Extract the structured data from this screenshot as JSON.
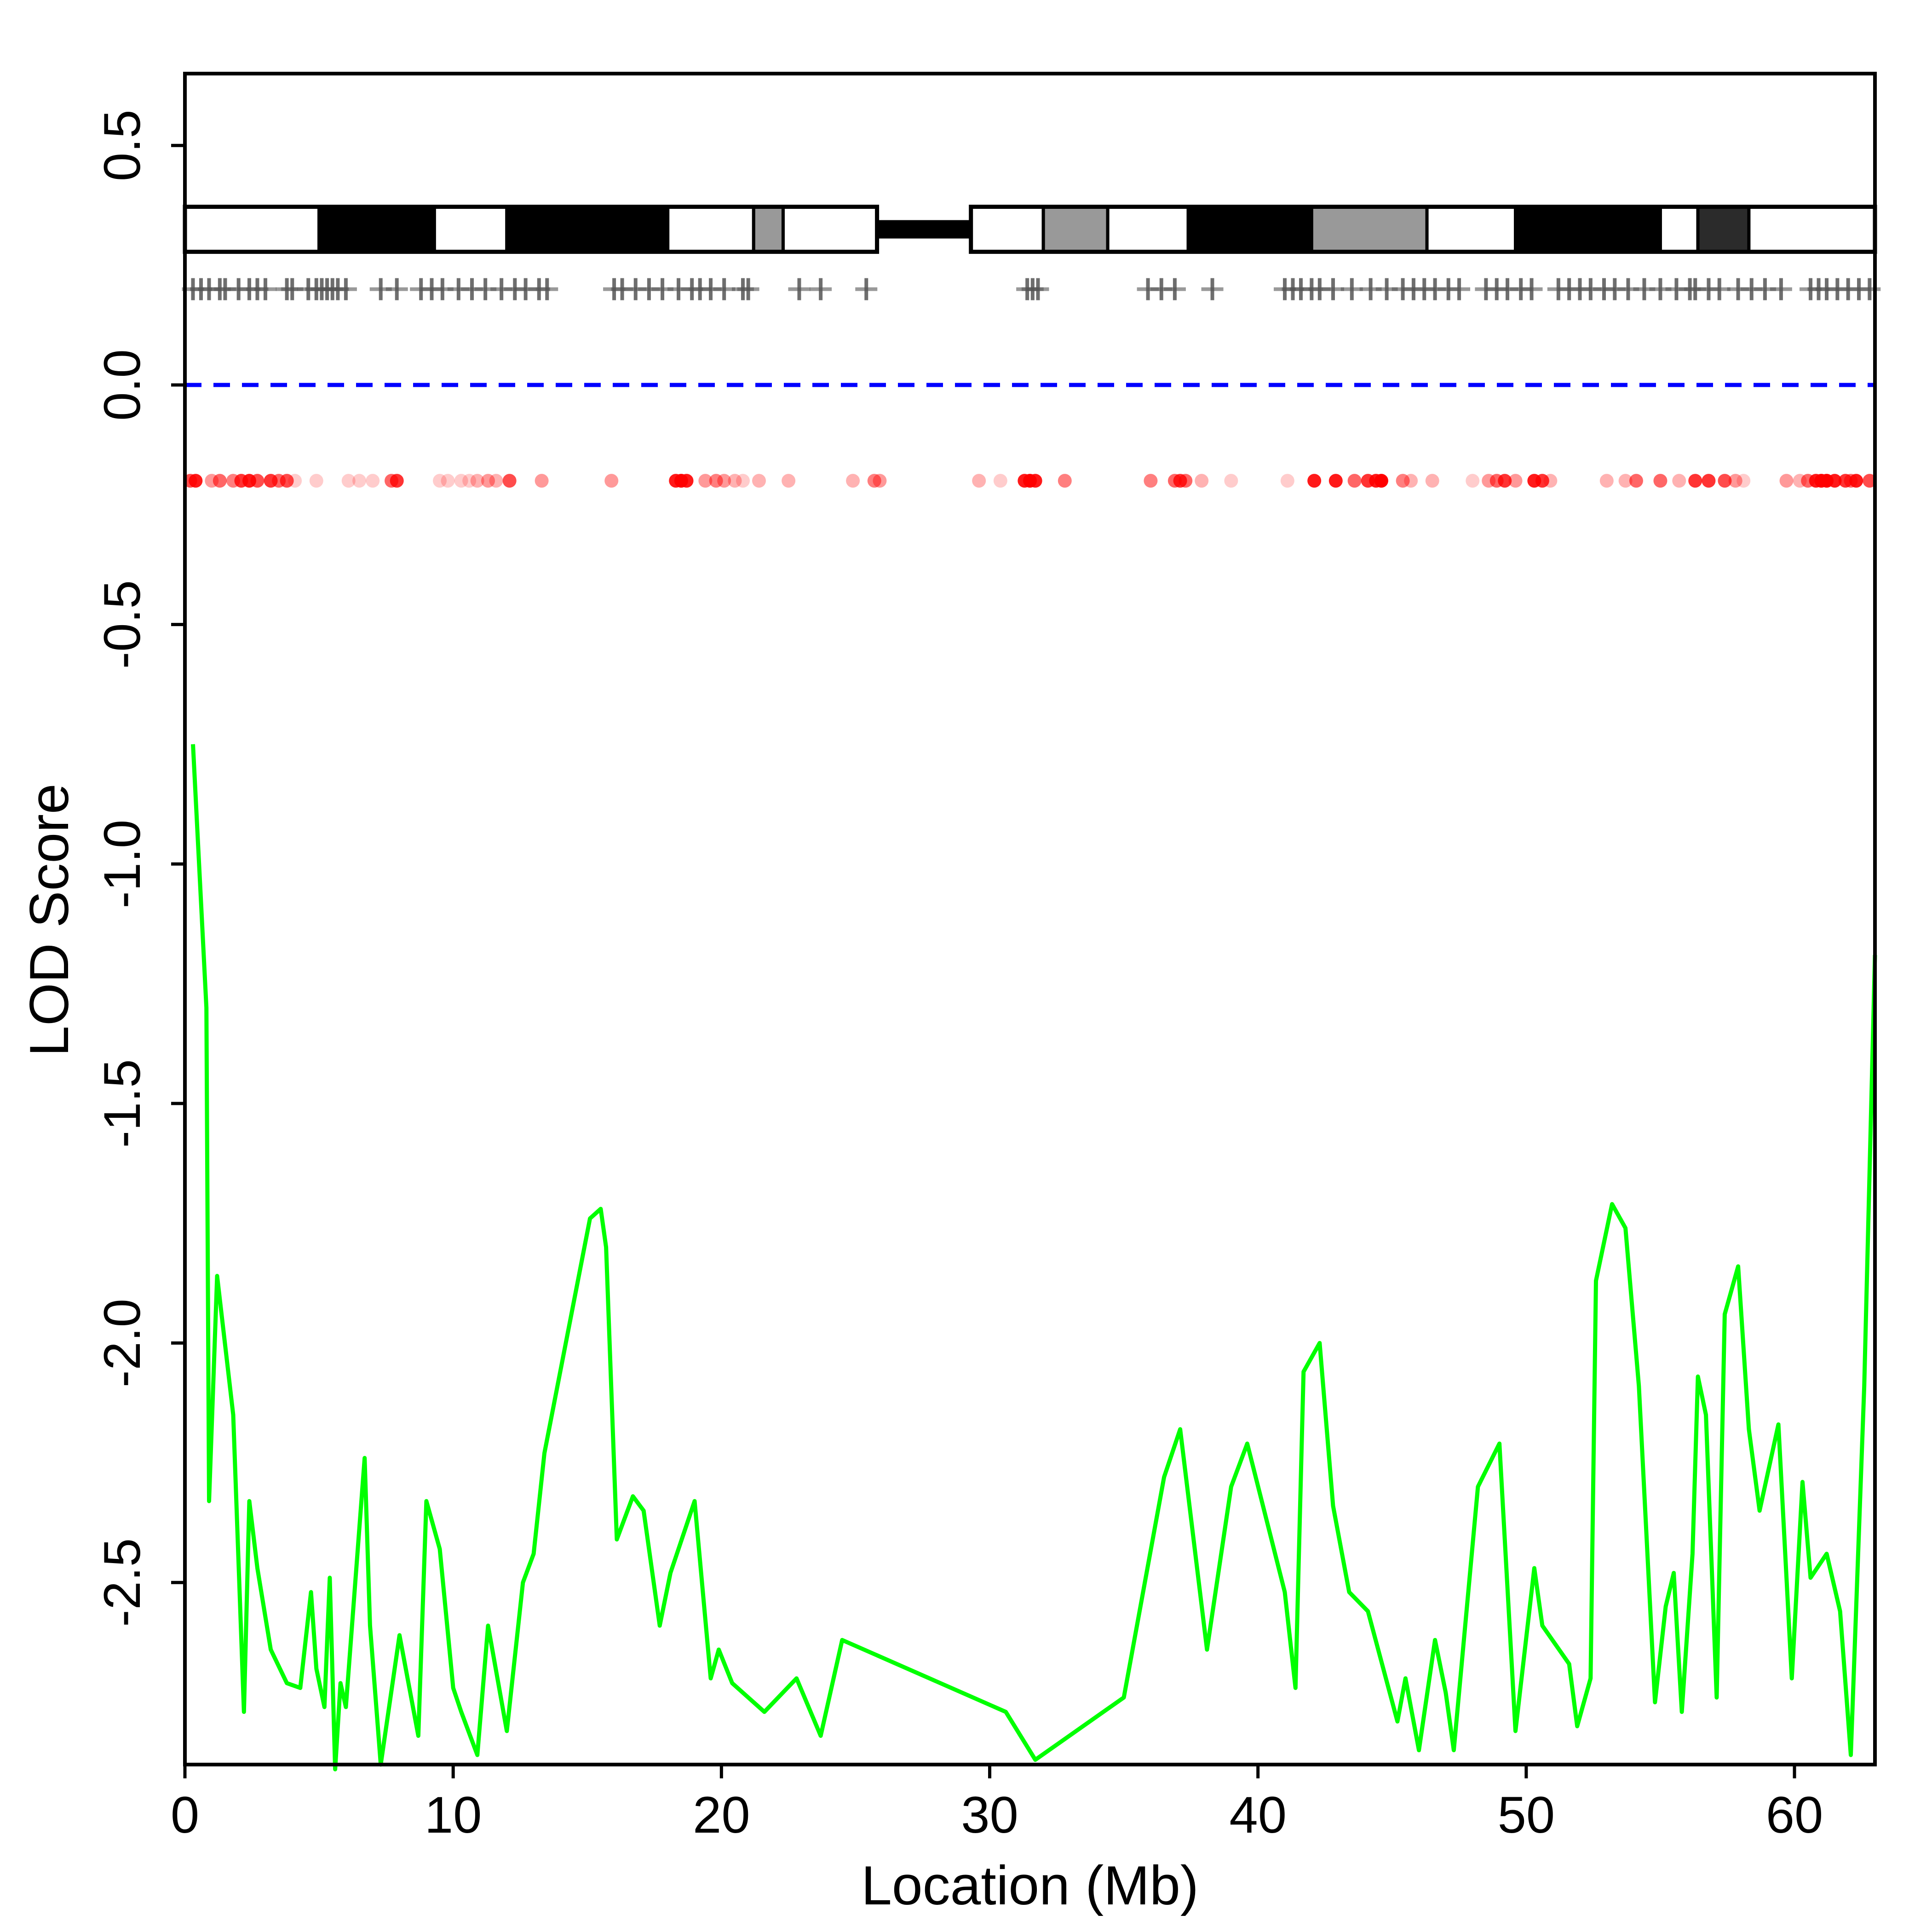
{
  "chart_data": {
    "type": "line",
    "xlabel": "Location (Mb)",
    "ylabel": "LOD Score",
    "xlim": [
      0,
      63
    ],
    "ylim": [
      -2.88,
      0.65
    ],
    "x_ticks": [
      0,
      10,
      20,
      30,
      40,
      50,
      60
    ],
    "x_tick_labels": [
      "0",
      "10",
      "20",
      "30",
      "40",
      "50",
      "60"
    ],
    "y_ticks": [
      -2.5,
      -2.0,
      -1.5,
      -1.0,
      -0.5,
      0.0,
      0.5
    ],
    "y_tick_labels": [
      "-2.5",
      "-2.0",
      "-1.5",
      "-1.0",
      "-0.5",
      "0.0",
      "0.5"
    ],
    "reference_line": {
      "y": 0.0,
      "style": "dashed",
      "color": "#0000ff"
    },
    "series": [
      {
        "color": "#00ff00",
        "x": [
          0.3,
          0.8,
          0.9,
          1.2,
          1.8,
          2.2,
          2.4,
          2.7,
          3.2,
          3.8,
          4.3,
          4.7,
          4.9,
          5.2,
          5.4,
          5.6,
          5.8,
          6.0,
          6.7,
          6.9,
          7.3,
          8.0,
          8.7,
          9.0,
          9.5,
          10.0,
          10.3,
          10.9,
          11.3,
          12.0,
          12.6,
          13.0,
          13.4,
          15.1,
          15.5,
          15.7,
          16.1,
          16.7,
          17.1,
          17.7,
          18.1,
          19.0,
          19.6,
          19.9,
          20.4,
          21.6,
          22.8,
          23.7,
          24.5,
          30.6,
          31.7,
          35.0,
          36.5,
          37.1,
          38.1,
          39.0,
          39.6,
          41.0,
          41.4,
          41.7,
          42.3,
          42.8,
          43.4,
          44.1,
          45.2,
          45.5,
          46.0,
          46.6,
          47.0,
          47.3,
          48.2,
          49.0,
          49.6,
          50.3,
          50.6,
          51.6,
          51.9,
          52.4,
          52.6,
          53.2,
          53.7,
          54.2,
          54.8,
          55.2,
          55.5,
          55.8,
          56.2,
          56.4,
          56.7,
          57.1,
          57.4,
          57.9,
          58.3,
          58.7,
          59.4,
          59.9,
          60.3,
          60.6,
          61.2,
          61.7,
          62.1,
          62.6,
          63.0
        ],
        "y": [
          -0.75,
          -1.3,
          -2.33,
          -1.86,
          -2.15,
          -2.77,
          -2.33,
          -2.47,
          -2.64,
          -2.71,
          -2.72,
          -2.52,
          -2.68,
          -2.76,
          -2.49,
          -2.89,
          -2.71,
          -2.76,
          -2.24,
          -2.59,
          -2.88,
          -2.61,
          -2.82,
          -2.33,
          -2.43,
          -2.72,
          -2.77,
          -2.86,
          -2.59,
          -2.81,
          -2.5,
          -2.44,
          -2.23,
          -1.74,
          -1.72,
          -1.8,
          -2.41,
          -2.32,
          -2.35,
          -2.59,
          -2.48,
          -2.33,
          -2.7,
          -2.64,
          -2.71,
          -2.77,
          -2.7,
          -2.82,
          -2.62,
          -2.77,
          -2.87,
          -2.74,
          -2.28,
          -2.18,
          -2.64,
          -2.3,
          -2.21,
          -2.52,
          -2.72,
          -2.06,
          -2.0,
          -2.34,
          -2.52,
          -2.56,
          -2.79,
          -2.7,
          -2.85,
          -2.62,
          -2.73,
          -2.85,
          -2.3,
          -2.21,
          -2.81,
          -2.47,
          -2.59,
          -2.67,
          -2.8,
          -2.7,
          -1.87,
          -1.71,
          -1.76,
          -2.09,
          -2.75,
          -2.55,
          -2.48,
          -2.77,
          -2.44,
          -2.07,
          -2.15,
          -2.74,
          -1.94,
          -1.84,
          -2.18,
          -2.35,
          -2.17,
          -2.7,
          -2.29,
          -2.49,
          -2.44,
          -2.56,
          -2.86,
          -2.09,
          -1.19
        ]
      }
    ],
    "ideogram": {
      "y_top": 0.372,
      "y_bottom": 0.278,
      "centromere": [
        25.8,
        29.3
      ],
      "bands": [
        {
          "start": 0,
          "end": 5.0,
          "fill": "#ffffff"
        },
        {
          "start": 5.0,
          "end": 9.3,
          "fill": "#000000"
        },
        {
          "start": 9.3,
          "end": 12.0,
          "fill": "#ffffff"
        },
        {
          "start": 12.0,
          "end": 18.0,
          "fill": "#000000"
        },
        {
          "start": 18.0,
          "end": 21.2,
          "fill": "#ffffff"
        },
        {
          "start": 21.2,
          "end": 22.3,
          "fill": "#999999"
        },
        {
          "start": 22.3,
          "end": 25.8,
          "fill": "#ffffff"
        },
        {
          "start": 29.3,
          "end": 32.0,
          "fill": "#ffffff"
        },
        {
          "start": 32.0,
          "end": 34.4,
          "fill": "#999999"
        },
        {
          "start": 34.4,
          "end": 37.4,
          "fill": "#ffffff"
        },
        {
          "start": 37.4,
          "end": 42.0,
          "fill": "#000000"
        },
        {
          "start": 42.0,
          "end": 46.3,
          "fill": "#999999"
        },
        {
          "start": 46.3,
          "end": 49.6,
          "fill": "#ffffff"
        },
        {
          "start": 49.6,
          "end": 55.0,
          "fill": "#000000"
        },
        {
          "start": 55.0,
          "end": 56.4,
          "fill": "#ffffff"
        },
        {
          "start": 56.4,
          "end": 58.3,
          "fill": "#2b2b2b"
        },
        {
          "start": 58.3,
          "end": 63.0,
          "fill": "#ffffff"
        }
      ]
    },
    "marker_track": {
      "y": 0.2,
      "positions": [
        0.3,
        0.6,
        0.9,
        1.3,
        1.5,
        2.0,
        2.4,
        2.7,
        3.0,
        3.8,
        4.0,
        4.6,
        4.9,
        5.1,
        5.3,
        5.5,
        5.7,
        6.0,
        7.3,
        7.9,
        8.8,
        9.2,
        9.6,
        10.2,
        10.7,
        11.2,
        11.8,
        12.3,
        12.7,
        13.2,
        13.5,
        16.0,
        16.3,
        16.8,
        17.3,
        17.8,
        18.4,
        18.9,
        19.2,
        19.6,
        20.1,
        20.8,
        21.0,
        22.9,
        23.7,
        25.4,
        31.4,
        31.6,
        31.8,
        35.9,
        36.4,
        36.9,
        38.3,
        41.0,
        41.3,
        41.6,
        42.0,
        42.3,
        42.8,
        43.5,
        44.2,
        44.8,
        45.4,
        45.8,
        46.2,
        46.6,
        47.1,
        47.5,
        48.5,
        48.9,
        49.3,
        49.8,
        50.2,
        51.2,
        51.6,
        52.0,
        52.4,
        52.9,
        53.3,
        53.8,
        54.4,
        55.0,
        55.6,
        56.1,
        56.3,
        56.8,
        57.2,
        57.9,
        58.4,
        58.9,
        59.5,
        60.6,
        60.9,
        61.2,
        61.6,
        62.0,
        62.4,
        62.8
      ],
      "color": "#555555"
    },
    "point_track": {
      "y": -0.2,
      "color": "#ff0000",
      "positions": [
        0.2,
        0.4,
        1.0,
        1.3,
        1.8,
        2.1,
        2.4,
        2.7,
        3.2,
        3.5,
        3.8,
        4.1,
        4.9,
        6.1,
        6.5,
        7.0,
        7.7,
        7.9,
        9.5,
        9.8,
        10.3,
        10.6,
        10.9,
        11.3,
        11.6,
        12.1,
        13.3,
        15.9,
        18.3,
        18.5,
        18.7,
        19.4,
        19.8,
        20.1,
        20.5,
        20.8,
        21.4,
        22.5,
        24.9,
        25.7,
        25.9,
        29.6,
        30.4,
        31.3,
        31.5,
        31.7,
        32.8,
        36.0,
        36.9,
        37.1,
        37.3,
        37.9,
        39.0,
        41.1,
        42.1,
        42.9,
        43.6,
        44.1,
        44.4,
        44.6,
        45.4,
        45.7,
        46.5,
        48.0,
        48.6,
        48.9,
        49.2,
        49.6,
        50.3,
        50.6,
        50.9,
        53.0,
        53.7,
        54.1,
        55.0,
        55.7,
        56.3,
        56.8,
        57.4,
        57.8,
        58.1,
        59.7,
        60.2,
        60.5,
        60.8,
        61.0,
        61.2,
        61.5,
        61.9,
        62.1,
        62.3,
        62.8
      ],
      "opacity": [
        0.7,
        0.9,
        0.4,
        0.6,
        0.5,
        0.8,
        0.9,
        0.7,
        0.8,
        0.6,
        0.7,
        0.2,
        0.2,
        0.2,
        0.2,
        0.2,
        0.6,
        0.8,
        0.2,
        0.2,
        0.2,
        0.2,
        0.3,
        0.4,
        0.3,
        0.7,
        0.4,
        0.4,
        0.9,
        1.0,
        0.9,
        0.4,
        0.5,
        0.4,
        0.3,
        0.2,
        0.3,
        0.3,
        0.3,
        0.5,
        0.4,
        0.3,
        0.2,
        0.9,
        1.0,
        0.9,
        0.5,
        0.5,
        0.6,
        0.8,
        0.6,
        0.3,
        0.2,
        0.2,
        0.9,
        0.9,
        0.6,
        0.8,
        0.9,
        1.0,
        0.5,
        0.3,
        0.3,
        0.2,
        0.4,
        0.6,
        0.8,
        0.4,
        0.9,
        0.8,
        0.3,
        0.3,
        0.3,
        0.6,
        0.6,
        0.3,
        0.8,
        0.8,
        0.7,
        0.4,
        0.2,
        0.4,
        0.3,
        0.6,
        0.9,
        1.0,
        1.0,
        0.9,
        0.8,
        0.6,
        0.9,
        0.7
      ]
    }
  }
}
